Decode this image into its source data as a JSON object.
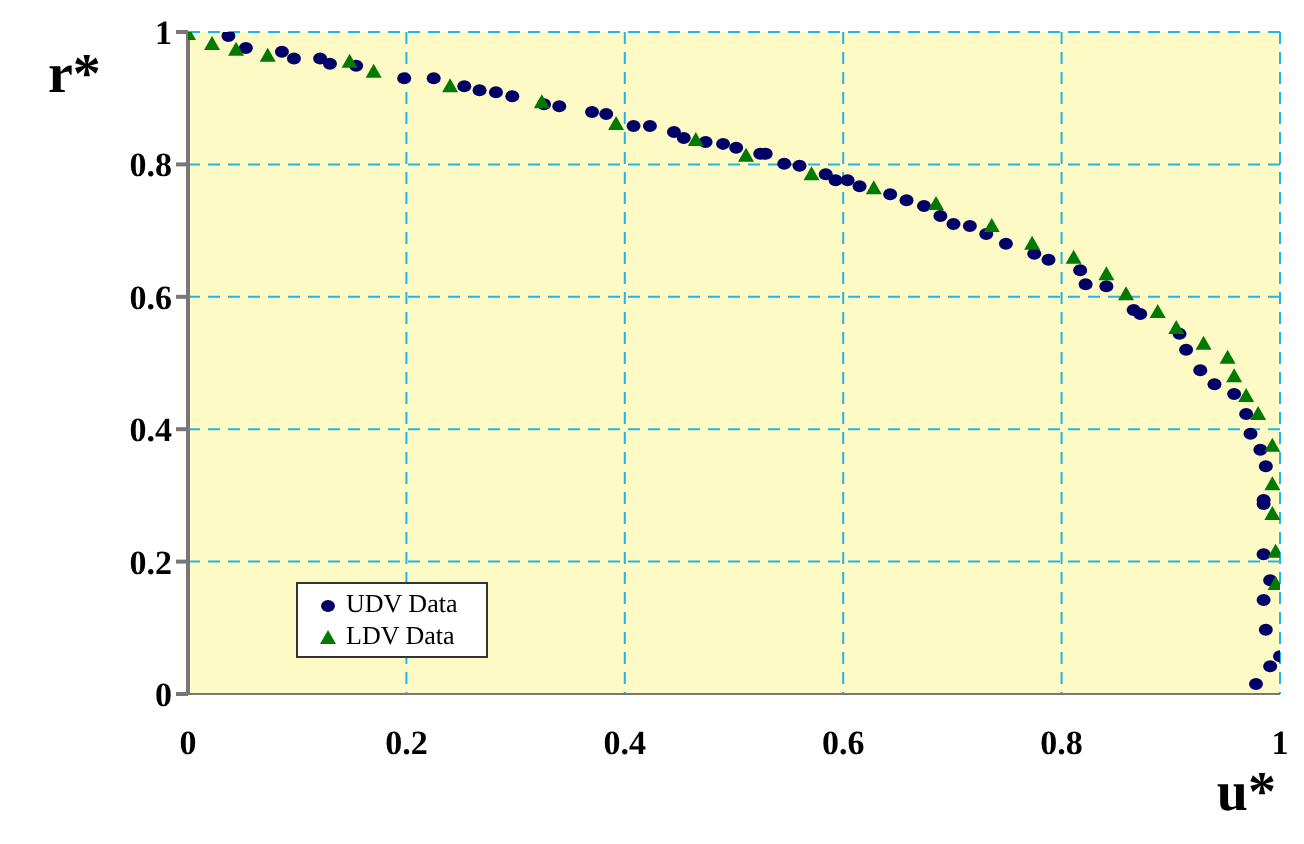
{
  "chart_data": {
    "type": "scatter",
    "xlabel": "u*",
    "ylabel": "r*",
    "xlim": [
      0,
      1
    ],
    "ylim": [
      0,
      1
    ],
    "xticks": [
      0,
      0.2,
      0.4,
      0.6,
      0.8,
      1
    ],
    "yticks": [
      0,
      0.2,
      0.4,
      0.6,
      0.8,
      1
    ],
    "grid": true,
    "legend": "bottom left",
    "series": [
      {
        "name": "UDV Data",
        "color": "#000066",
        "marker": "circle",
        "x": [
          0.037,
          0.053,
          0.086,
          0.097,
          0.121,
          0.13,
          0.154,
          0.198,
          0.225,
          0.253,
          0.267,
          0.282,
          0.297,
          0.326,
          0.34,
          0.37,
          0.383,
          0.408,
          0.423,
          0.445,
          0.454,
          0.474,
          0.49,
          0.502,
          0.524,
          0.529,
          0.546,
          0.56,
          0.584,
          0.593,
          0.604,
          0.615,
          0.643,
          0.658,
          0.674,
          0.689,
          0.701,
          0.716,
          0.731,
          0.749,
          0.775,
          0.788,
          0.817,
          0.822,
          0.841,
          0.866,
          0.872,
          0.908,
          0.914,
          0.927,
          0.94,
          0.958,
          0.969,
          0.973,
          0.982,
          0.987,
          0.985,
          0.985,
          0.985,
          0.991,
          0.985,
          0.987,
          1.0,
          0.991,
          0.978
        ],
        "values": [
          0.994,
          0.976,
          0.97,
          0.96,
          0.96,
          0.952,
          0.949,
          0.93,
          0.93,
          0.918,
          0.912,
          0.909,
          0.903,
          0.891,
          0.888,
          0.879,
          0.876,
          0.858,
          0.858,
          0.849,
          0.84,
          0.834,
          0.831,
          0.825,
          0.816,
          0.816,
          0.801,
          0.798,
          0.785,
          0.776,
          0.776,
          0.767,
          0.755,
          0.746,
          0.737,
          0.722,
          0.71,
          0.707,
          0.695,
          0.68,
          0.665,
          0.656,
          0.64,
          0.619,
          0.616,
          0.58,
          0.574,
          0.544,
          0.52,
          0.489,
          0.468,
          0.453,
          0.423,
          0.393,
          0.369,
          0.344,
          0.293,
          0.287,
          0.211,
          0.172,
          0.142,
          0.097,
          0.057,
          0.042,
          0.015
        ]
      },
      {
        "name": "LDV Data",
        "color": "#007a00",
        "marker": "triangle",
        "x": [
          0.0,
          0.022,
          0.044,
          0.073,
          0.148,
          0.17,
          0.24,
          0.324,
          0.392,
          0.465,
          0.511,
          0.571,
          0.628,
          0.685,
          0.736,
          0.773,
          0.811,
          0.841,
          0.859,
          0.888,
          0.905,
          0.93,
          0.952,
          0.958,
          0.969,
          0.98,
          0.993,
          0.993,
          0.993,
          0.996,
          0.996
        ],
        "values": [
          0.997,
          0.982,
          0.973,
          0.964,
          0.955,
          0.94,
          0.918,
          0.894,
          0.861,
          0.837,
          0.813,
          0.785,
          0.764,
          0.74,
          0.707,
          0.68,
          0.659,
          0.634,
          0.604,
          0.577,
          0.553,
          0.529,
          0.508,
          0.48,
          0.45,
          0.423,
          0.375,
          0.317,
          0.272,
          0.215,
          0.166
        ]
      }
    ]
  }
}
